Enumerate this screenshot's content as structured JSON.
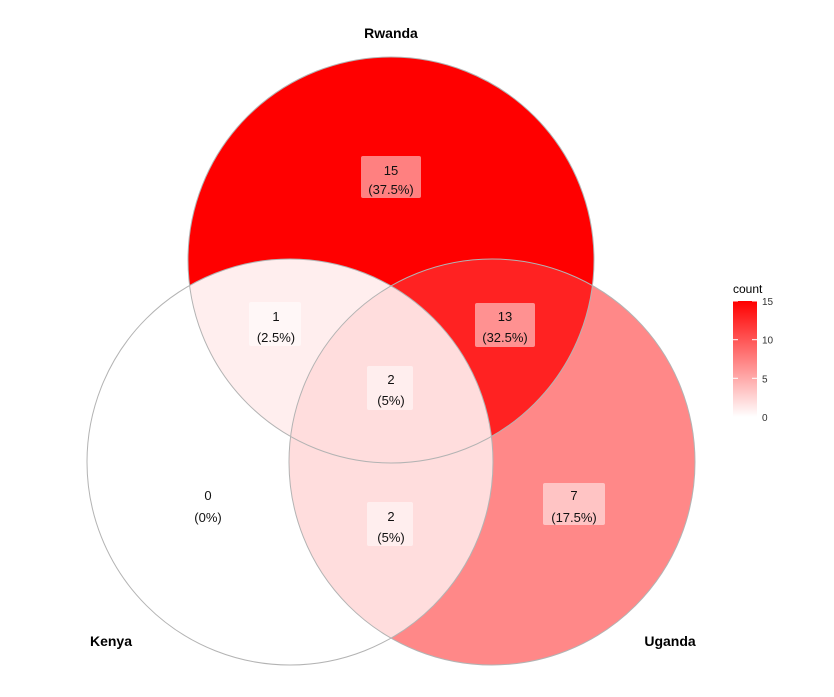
{
  "chart_data": {
    "type": "venn",
    "sets": [
      {
        "name": "Rwanda"
      },
      {
        "name": "Kenya"
      },
      {
        "name": "Uganda"
      }
    ],
    "regions": [
      {
        "id": "rwanda-only",
        "sets": [
          "Rwanda"
        ],
        "count": "15",
        "percent": "(37.5%)",
        "value": 15
      },
      {
        "id": "kenya-only",
        "sets": [
          "Kenya"
        ],
        "count": "0",
        "percent": "(0%)",
        "value": 0
      },
      {
        "id": "uganda-only",
        "sets": [
          "Uganda"
        ],
        "count": "7",
        "percent": "(17.5%)",
        "value": 7
      },
      {
        "id": "rwanda-kenya",
        "sets": [
          "Rwanda",
          "Kenya"
        ],
        "count": "1",
        "percent": "(2.5%)",
        "value": 1
      },
      {
        "id": "rwanda-uganda",
        "sets": [
          "Rwanda",
          "Uganda"
        ],
        "count": "13",
        "percent": "(32.5%)",
        "value": 13
      },
      {
        "id": "kenya-uganda",
        "sets": [
          "Kenya",
          "Uganda"
        ],
        "count": "2",
        "percent": "(5%)",
        "value": 2
      },
      {
        "id": "all-three",
        "sets": [
          "Rwanda",
          "Kenya",
          "Uganda"
        ],
        "count": "2",
        "percent": "(5%)",
        "value": 2
      }
    ],
    "legend": {
      "title": "count",
      "ticks": [
        "15",
        "10",
        "5",
        "0"
      ],
      "min": 0,
      "max": 15,
      "low_color": "#ffffff",
      "high_color": "#ff0000",
      "placement": "right"
    }
  }
}
